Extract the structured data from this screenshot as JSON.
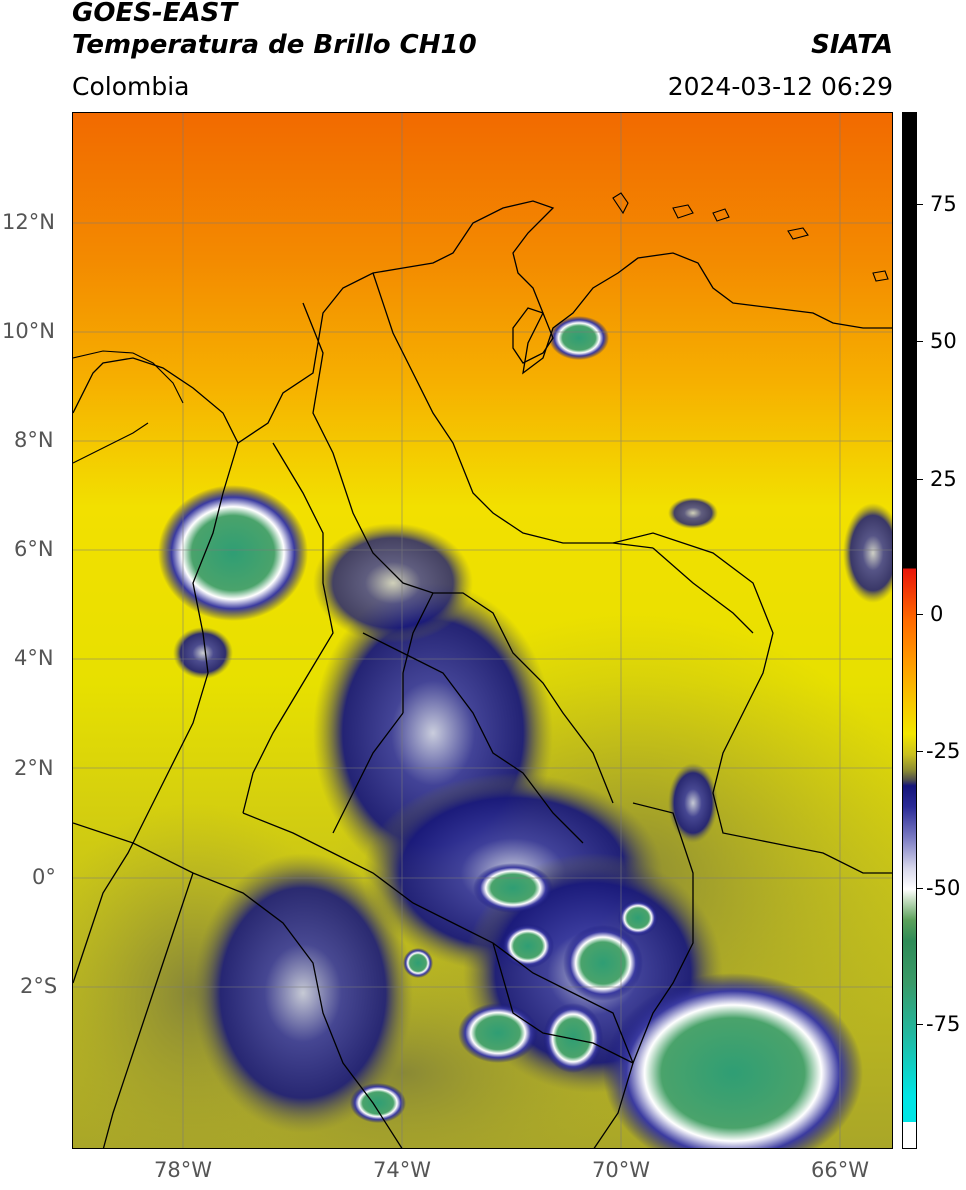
{
  "header": {
    "satellite": "GOES-EAST",
    "product": "Temperatura de Brillo CH10",
    "region": "Colombia",
    "agency": "SIATA",
    "timestamp": "2024-03-12 06:29"
  },
  "map": {
    "lon_range": [
      -80,
      -65
    ],
    "lat_range": [
      -5,
      14
    ],
    "lon_ticks": [
      "78°W",
      "74°W",
      "70°W",
      "66°W"
    ],
    "lat_ticks": [
      "12°N",
      "10°N",
      "8°N",
      "6°N",
      "4°N",
      "2°N",
      "0°",
      "2°S"
    ],
    "gridlines": true,
    "colormap_notes": "orange (warm, north) to yellow to olive to navy/white/green (cold cloud tops)"
  },
  "colorbar": {
    "range": [
      -100,
      90
    ],
    "ticks": [
      "75",
      "50",
      "25",
      "0",
      "-25",
      "-50",
      "-75"
    ],
    "tick_values": [
      75,
      50,
      25,
      0,
      -25,
      -50,
      -75
    ],
    "colors": {
      "black": "#000000",
      "red": "#e8140a",
      "orange": "#ff8c00",
      "yellow": "#f2e600",
      "olive": "#8c8c32",
      "navy": "#14147a",
      "white": "#ffffff",
      "green": "#2e8b57",
      "cyan": "#00e5e5"
    }
  }
}
